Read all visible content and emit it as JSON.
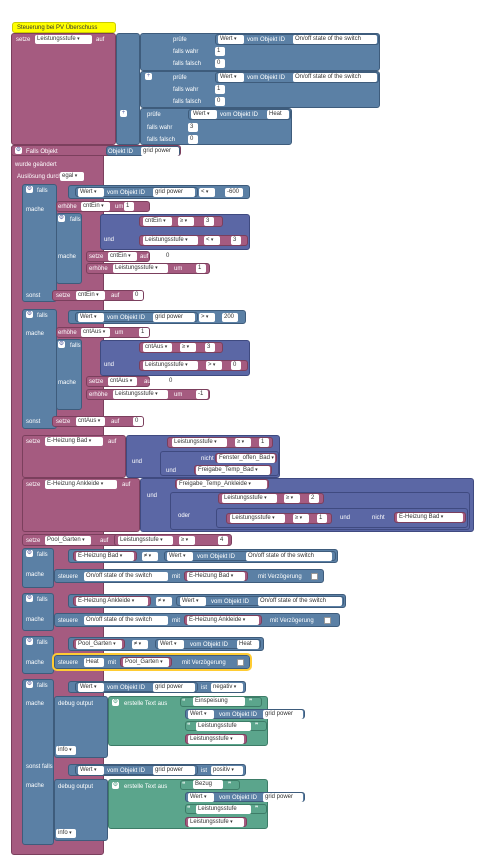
{
  "title": "Steuerung bei PV Überschuss",
  "kw": {
    "setze": "setze",
    "auf": "auf",
    "pruefe": "prüfe",
    "falls_wahr": "falls wahr",
    "falls_falsch": "falls falsch",
    "falls": "falls",
    "mache": "mache",
    "sonst": "sonst",
    "sonst_falls": "sonst falls",
    "und": "und",
    "oder": "oder",
    "nicht": "nicht",
    "erhoehe": "erhöhe",
    "um": "um",
    "wert": "Wert",
    "vom_objekt_id": "vom Objekt ID",
    "steuere": "steuere",
    "mit": "mit",
    "mit_verz": "mit Verzögerung",
    "debug": "debug output",
    "erstelle": "erstelle Text aus",
    "ist": "ist",
    "info": "info",
    "falls_objekt": "Falls Objekt",
    "objekt_id": "Objekt ID",
    "wurde": "wurde geändert",
    "ausloesung": "Auslösung durch",
    "egal": "egal",
    "plus": "+"
  },
  "vars": {
    "leistung": "Leistungsstufe",
    "cntEin": "cntEin",
    "cntAus": "cntAus",
    "eBad": "E-Heizung Bad",
    "eAnk": "E-Heizung Ankleide",
    "pool": "Pool_Garten",
    "fenster": "Fenster_offen_Bad",
    "frBad": "Freigabe_Temp_Bad",
    "frAnk": "Freigabe_Temp_Ankleide"
  },
  "obj": {
    "onoff": "On/off state of the switch",
    "heat": "Heat",
    "grid": "grid power"
  },
  "ops": {
    "lt": "<",
    "gt": ">",
    "ge": "≥",
    "ne": "≠"
  },
  "nums": {
    "n600": "-600",
    "n200": "200",
    "n1": "1",
    "n0": "0",
    "n3": "3",
    "n2": "2",
    "n4": "4",
    "nm1": "-1"
  },
  "sel": {
    "negativ": "negativ",
    "positiv": "positiv"
  },
  "txt": {
    "einspeisung": "Einspeisung",
    "bezug": "Bezug"
  }
}
